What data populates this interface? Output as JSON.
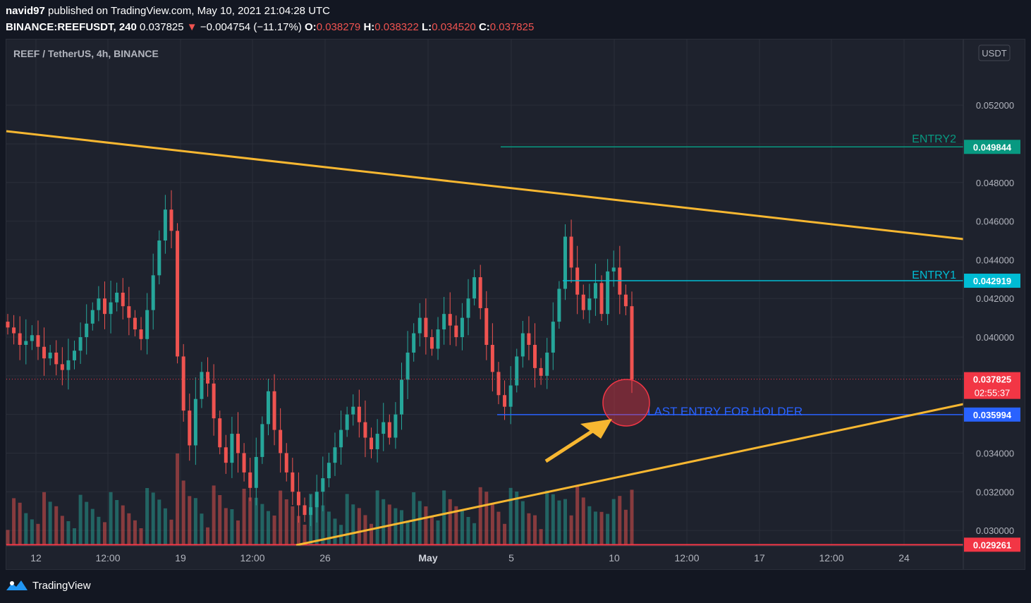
{
  "header": {
    "user": "navid97",
    "published": "published on TradingView.com, May 10, 2021 21:04:28 UTC",
    "symbol": "BINANCE:REEFUSDT, 240",
    "last": "0.037825",
    "change_arrow": "▼",
    "change": "−0.004754 (−11.17%)",
    "o_label": "O:",
    "o_value": "0.038279",
    "h_label": "H:",
    "h_value": "0.038322",
    "l_label": "L:",
    "l_value": "0.034520",
    "c_label": "C:",
    "c_value": "0.037825"
  },
  "chart_title": "REEF / TetherUS, 4h, BINANCE",
  "currency_badge": "USDT",
  "footer_brand": "TradingView",
  "chart_data": {
    "type": "candlestick",
    "symbol": "REEF / TetherUS",
    "interval": "4h",
    "exchange": "BINANCE",
    "y_range": [
      0.0292,
      0.0554
    ],
    "y_ticks": [
      "0.052000",
      "0.050000",
      "0.048000",
      "0.046000",
      "0.044000",
      "0.042000",
      "0.040000",
      "0.038000",
      "0.036000",
      "0.034000",
      "0.032000",
      "0.030000"
    ],
    "x_ticks": [
      "12",
      "12:00",
      "19",
      "12:00",
      "26",
      "May",
      "5",
      "10",
      "12:00",
      "17",
      "12:00",
      "24"
    ],
    "close_series": [
      0.0405,
      0.0402,
      0.0396,
      0.0398,
      0.0401,
      0.0395,
      0.0389,
      0.0392,
      0.0386,
      0.0383,
      0.0388,
      0.0393,
      0.04,
      0.0407,
      0.0414,
      0.042,
      0.0412,
      0.0418,
      0.0423,
      0.0416,
      0.041,
      0.0404,
      0.0399,
      0.0414,
      0.0432,
      0.045,
      0.0466,
      0.0455,
      0.039,
      0.0362,
      0.0344,
      0.0368,
      0.0382,
      0.0376,
      0.0358,
      0.0343,
      0.0335,
      0.035,
      0.034,
      0.033,
      0.0322,
      0.0338,
      0.0355,
      0.0372,
      0.0352,
      0.034,
      0.033,
      0.032,
      0.0313,
      0.0308,
      0.0312,
      0.032,
      0.0327,
      0.0335,
      0.0343,
      0.0352,
      0.036,
      0.0364,
      0.0356,
      0.0348,
      0.0342,
      0.035,
      0.0356,
      0.0348,
      0.036,
      0.0378,
      0.0392,
      0.0402,
      0.041,
      0.04,
      0.0394,
      0.0404,
      0.0412,
      0.0406,
      0.04,
      0.041,
      0.042,
      0.0431,
      0.0415,
      0.0396,
      0.0382,
      0.037,
      0.0364,
      0.0375,
      0.039,
      0.0402,
      0.0396,
      0.0384,
      0.038,
      0.0392,
      0.0408,
      0.0425,
      0.0452,
      0.0436,
      0.0422,
      0.0414,
      0.042,
      0.0428,
      0.0412,
      0.0434,
      0.0436,
      0.0422,
      0.0416,
      0.0378
    ],
    "horizontal_levels": [
      {
        "price": 0.049844,
        "label": "0.049844",
        "name": "ENTRY2",
        "color": "#089981"
      },
      {
        "price": 0.042919,
        "label": "0.042919",
        "name": "ENTRY1",
        "color": "#00bcd4"
      },
      {
        "price": 0.035994,
        "label": "0.035994",
        "name": "LAST ENTRY FOR HOLDER",
        "color": "#2962ff"
      },
      {
        "price": 0.029261,
        "label": "0.029261",
        "name": "",
        "color": "#f23645"
      }
    ],
    "current_price": {
      "label": "0.037825",
      "countdown": "02:55:37",
      "color": "#f23645"
    },
    "trendlines": [
      {
        "name": "upper-resistance",
        "color": "#f7b731"
      },
      {
        "name": "lower-support",
        "color": "#f7b731"
      }
    ],
    "colors": {
      "up": "#26a69a",
      "down": "#ef5350",
      "background": "#1e222d",
      "grid": "#2a2e39"
    }
  }
}
